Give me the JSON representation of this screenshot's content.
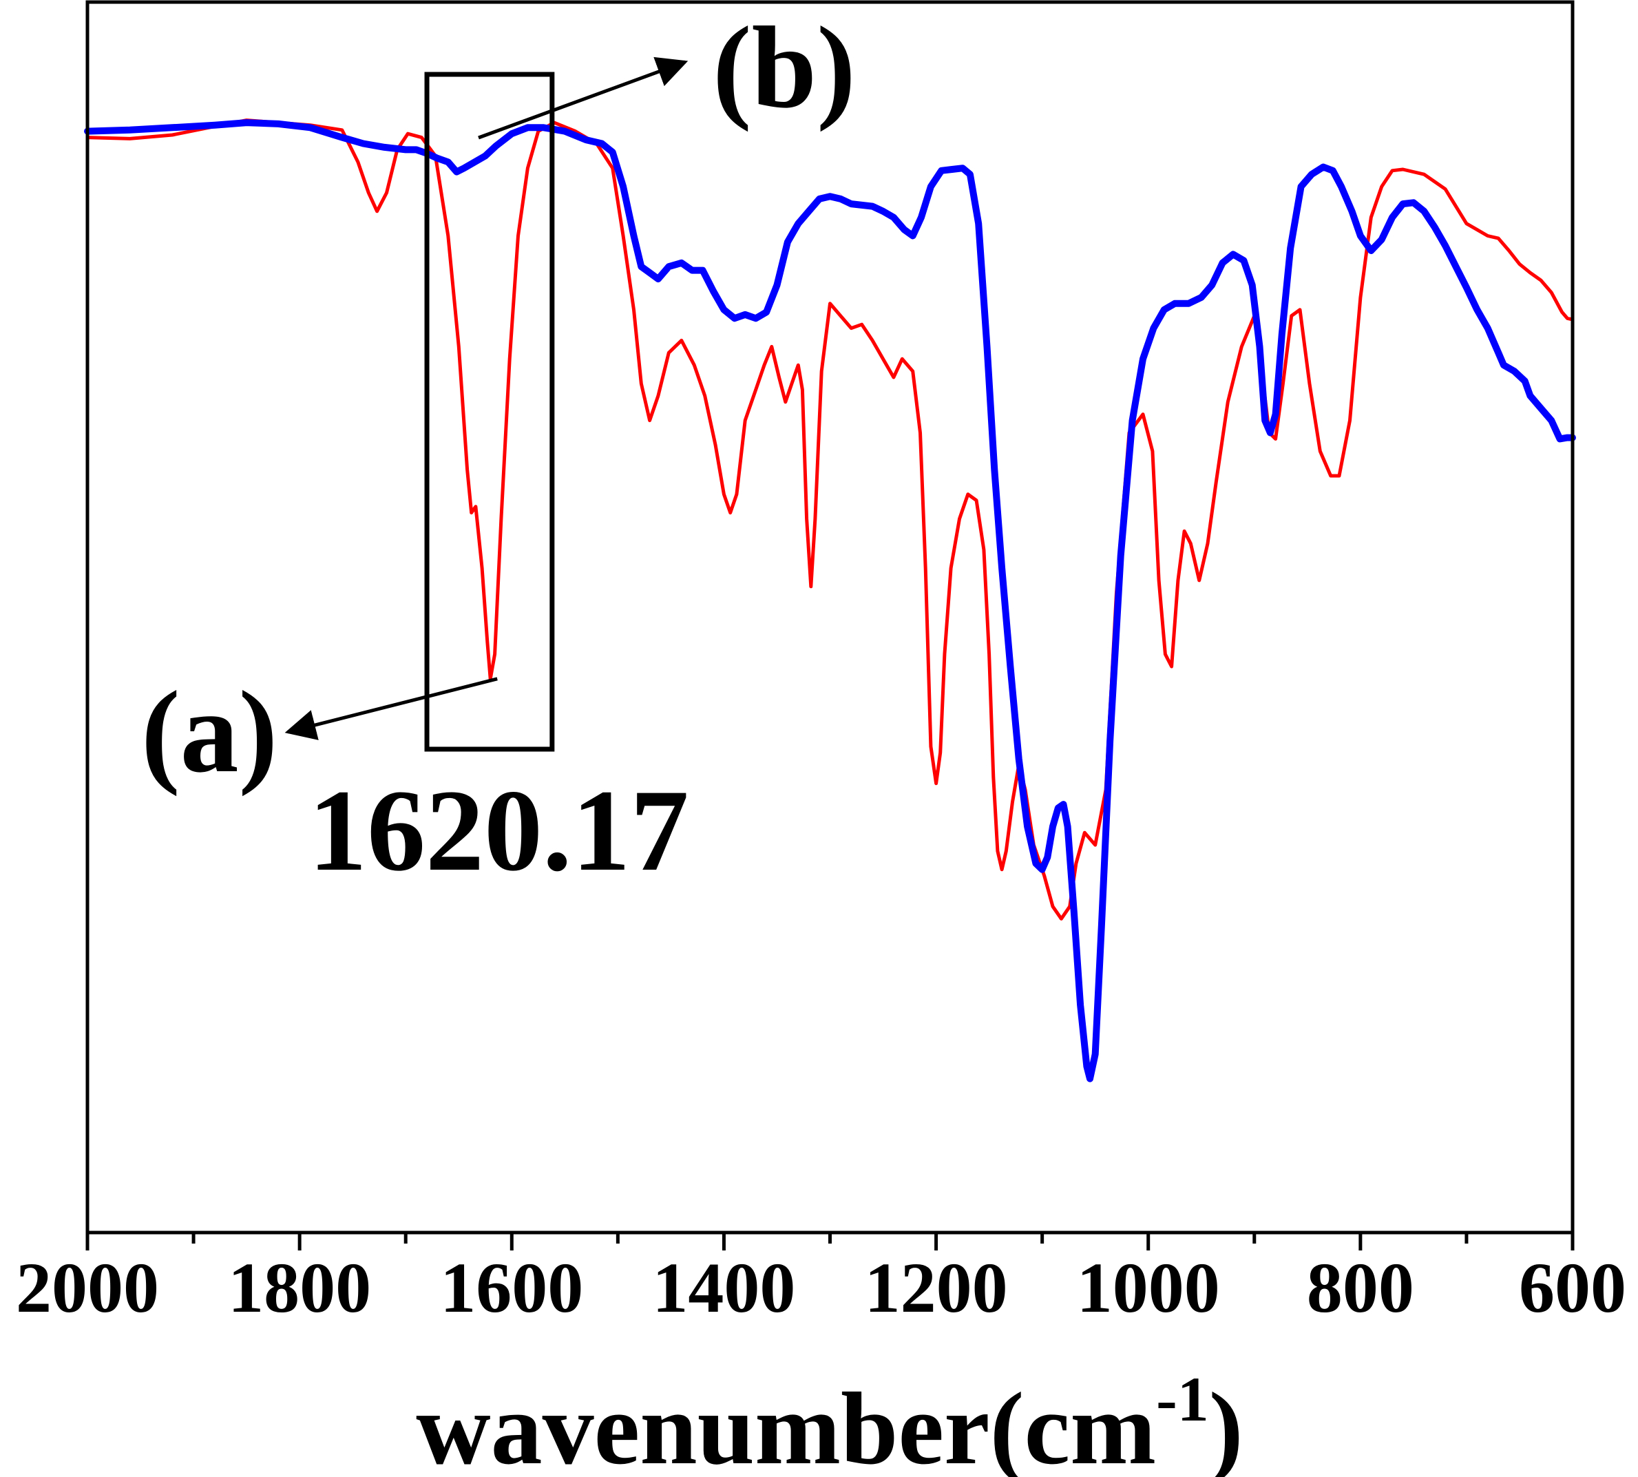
{
  "chart_data": {
    "type": "line",
    "title": "",
    "xlabel": "wavenumber(cm",
    "xlabel_sup": "-1",
    "xlabel_close": ")",
    "ylabel": "",
    "xlim": [
      2000,
      600
    ],
    "x_reversed": true,
    "ylim": [
      0,
      100
    ],
    "y_ticks_labeled": false,
    "grid": false,
    "x_ticks": [
      2000,
      1800,
      1600,
      1400,
      1200,
      1000,
      800,
      600
    ],
    "x_tick_labels": [
      "2000",
      "1800",
      "1600",
      "1400",
      "1200",
      "1000",
      "800",
      "600"
    ],
    "series": [
      {
        "label": "(a)",
        "color": "#ff0000",
        "points": [
          [
            2000,
            89.0
          ],
          [
            1960,
            88.9
          ],
          [
            1920,
            89.2
          ],
          [
            1880,
            89.9
          ],
          [
            1850,
            90.4
          ],
          [
            1820,
            90.2
          ],
          [
            1790,
            90.0
          ],
          [
            1760,
            89.6
          ],
          [
            1745,
            87.0
          ],
          [
            1735,
            84.5
          ],
          [
            1727,
            83.0
          ],
          [
            1718,
            84.5
          ],
          [
            1708,
            88.0
          ],
          [
            1698,
            89.3
          ],
          [
            1685,
            89.0
          ],
          [
            1672,
            87.5
          ],
          [
            1660,
            81.0
          ],
          [
            1650,
            72.0
          ],
          [
            1642,
            62.0
          ],
          [
            1638,
            58.5
          ],
          [
            1634,
            59.0
          ],
          [
            1628,
            54.0
          ],
          [
            1623,
            48.0
          ],
          [
            1620.17,
            45.0
          ],
          [
            1616,
            47.0
          ],
          [
            1610,
            58.0
          ],
          [
            1602,
            71.0
          ],
          [
            1594,
            81.0
          ],
          [
            1585,
            86.5
          ],
          [
            1575,
            89.5
          ],
          [
            1560,
            90.2
          ],
          [
            1540,
            89.5
          ],
          [
            1520,
            88.5
          ],
          [
            1505,
            86.5
          ],
          [
            1495,
            81.0
          ],
          [
            1485,
            75.0
          ],
          [
            1478,
            69.0
          ],
          [
            1470,
            66.0
          ],
          [
            1462,
            68.0
          ],
          [
            1452,
            71.5
          ],
          [
            1440,
            72.5
          ],
          [
            1428,
            70.5
          ],
          [
            1418,
            68.0
          ],
          [
            1408,
            64.0
          ],
          [
            1400,
            60.0
          ],
          [
            1394,
            58.5
          ],
          [
            1388,
            60.0
          ],
          [
            1380,
            66.0
          ],
          [
            1370,
            68.5
          ],
          [
            1362,
            70.5
          ],
          [
            1355,
            72.0
          ],
          [
            1348,
            69.5
          ],
          [
            1342,
            67.5
          ],
          [
            1336,
            69.0
          ],
          [
            1330,
            70.5
          ],
          [
            1326,
            68.5
          ],
          [
            1322,
            58.0
          ],
          [
            1318,
            52.5
          ],
          [
            1314,
            58.0
          ],
          [
            1308,
            70.0
          ],
          [
            1300,
            75.5
          ],
          [
            1290,
            74.5
          ],
          [
            1280,
            73.5
          ],
          [
            1270,
            73.8
          ],
          [
            1260,
            72.5
          ],
          [
            1250,
            71.0
          ],
          [
            1240,
            69.5
          ],
          [
            1232,
            71.0
          ],
          [
            1222,
            70.0
          ],
          [
            1215,
            65.0
          ],
          [
            1210,
            54.0
          ],
          [
            1205,
            39.5
          ],
          [
            1200,
            36.5
          ],
          [
            1196,
            39.0
          ],
          [
            1192,
            47.0
          ],
          [
            1186,
            54.0
          ],
          [
            1178,
            58.0
          ],
          [
            1170,
            60.0
          ],
          [
            1162,
            59.5
          ],
          [
            1155,
            55.5
          ],
          [
            1150,
            47.0
          ],
          [
            1146,
            37.0
          ],
          [
            1142,
            31.0
          ],
          [
            1138,
            29.5
          ],
          [
            1134,
            31.0
          ],
          [
            1128,
            35.0
          ],
          [
            1122,
            38.0
          ],
          [
            1116,
            36.0
          ],
          [
            1108,
            31.5
          ],
          [
            1098,
            29.0
          ],
          [
            1090,
            26.5
          ],
          [
            1082,
            25.5
          ],
          [
            1074,
            26.5
          ],
          [
            1068,
            30.0
          ],
          [
            1060,
            32.5
          ],
          [
            1050,
            31.5
          ],
          [
            1040,
            36.0
          ],
          [
            1030,
            52.0
          ],
          [
            1018,
            65.0
          ],
          [
            1005,
            66.5
          ],
          [
            996,
            63.5
          ],
          [
            990,
            53.0
          ],
          [
            984,
            47.0
          ],
          [
            978,
            46.0
          ],
          [
            972,
            53.0
          ],
          [
            966,
            57.0
          ],
          [
            960,
            56.0
          ],
          [
            952,
            53.0
          ],
          [
            944,
            56.0
          ],
          [
            936,
            61.0
          ],
          [
            925,
            67.5
          ],
          [
            912,
            72.0
          ],
          [
            900,
            74.5
          ],
          [
            893,
            70.0
          ],
          [
            886,
            65.0
          ],
          [
            880,
            64.5
          ],
          [
            873,
            69.0
          ],
          [
            865,
            74.5
          ],
          [
            857,
            75.0
          ],
          [
            848,
            69.0
          ],
          [
            838,
            63.5
          ],
          [
            828,
            61.5
          ],
          [
            820,
            61.5
          ],
          [
            810,
            66.0
          ],
          [
            800,
            76.0
          ],
          [
            790,
            82.5
          ],
          [
            780,
            85.0
          ],
          [
            770,
            86.3
          ],
          [
            760,
            86.4
          ],
          [
            740,
            86.0
          ],
          [
            720,
            84.8
          ],
          [
            700,
            82.0
          ],
          [
            690,
            81.5
          ],
          [
            680,
            81.0
          ],
          [
            670,
            80.8
          ],
          [
            660,
            79.8
          ],
          [
            650,
            78.7
          ],
          [
            640,
            78.0
          ],
          [
            630,
            77.4
          ],
          [
            620,
            76.4
          ],
          [
            610,
            74.8
          ],
          [
            605,
            74.3
          ],
          [
            600,
            74.2
          ]
        ]
      },
      {
        "label": "(b)",
        "color": "#0000ff",
        "points": [
          [
            2000,
            89.5
          ],
          [
            1960,
            89.6
          ],
          [
            1920,
            89.8
          ],
          [
            1880,
            90.0
          ],
          [
            1850,
            90.2
          ],
          [
            1820,
            90.1
          ],
          [
            1790,
            89.8
          ],
          [
            1760,
            89.0
          ],
          [
            1740,
            88.5
          ],
          [
            1720,
            88.2
          ],
          [
            1700,
            88.0
          ],
          [
            1690,
            88.0
          ],
          [
            1680,
            87.7
          ],
          [
            1670,
            87.3
          ],
          [
            1660,
            87.0
          ],
          [
            1652,
            86.2
          ],
          [
            1645,
            86.5
          ],
          [
            1635,
            87.0
          ],
          [
            1625,
            87.5
          ],
          [
            1615,
            88.3
          ],
          [
            1600,
            89.3
          ],
          [
            1585,
            89.8
          ],
          [
            1570,
            89.8
          ],
          [
            1550,
            89.5
          ],
          [
            1530,
            88.8
          ],
          [
            1515,
            88.5
          ],
          [
            1505,
            87.8
          ],
          [
            1495,
            85.0
          ],
          [
            1485,
            81.0
          ],
          [
            1478,
            78.5
          ],
          [
            1470,
            78.0
          ],
          [
            1462,
            77.5
          ],
          [
            1452,
            78.5
          ],
          [
            1440,
            78.8
          ],
          [
            1430,
            78.2
          ],
          [
            1420,
            78.2
          ],
          [
            1410,
            76.5
          ],
          [
            1400,
            75.0
          ],
          [
            1390,
            74.3
          ],
          [
            1380,
            74.6
          ],
          [
            1370,
            74.3
          ],
          [
            1360,
            74.8
          ],
          [
            1350,
            77.0
          ],
          [
            1340,
            80.5
          ],
          [
            1330,
            82.0
          ],
          [
            1320,
            83.0
          ],
          [
            1310,
            84.0
          ],
          [
            1300,
            84.2
          ],
          [
            1290,
            84.0
          ],
          [
            1280,
            83.6
          ],
          [
            1270,
            83.5
          ],
          [
            1260,
            83.4
          ],
          [
            1250,
            83.0
          ],
          [
            1240,
            82.5
          ],
          [
            1230,
            81.5
          ],
          [
            1222,
            81.0
          ],
          [
            1214,
            82.5
          ],
          [
            1205,
            85.0
          ],
          [
            1195,
            86.3
          ],
          [
            1185,
            86.4
          ],
          [
            1175,
            86.5
          ],
          [
            1168,
            86.0
          ],
          [
            1160,
            82.0
          ],
          [
            1152,
            72.0
          ],
          [
            1145,
            62.0
          ],
          [
            1138,
            54.0
          ],
          [
            1130,
            46.0
          ],
          [
            1122,
            38.5
          ],
          [
            1114,
            33.0
          ],
          [
            1106,
            30.0
          ],
          [
            1100,
            29.5
          ],
          [
            1095,
            30.5
          ],
          [
            1090,
            33.0
          ],
          [
            1085,
            34.5
          ],
          [
            1080,
            34.8
          ],
          [
            1076,
            33.0
          ],
          [
            1070,
            26.0
          ],
          [
            1064,
            18.5
          ],
          [
            1058,
            13.5
          ],
          [
            1055,
            12.5
          ],
          [
            1050,
            14.5
          ],
          [
            1044,
            25.0
          ],
          [
            1036,
            40.0
          ],
          [
            1026,
            55.0
          ],
          [
            1015,
            66.0
          ],
          [
            1005,
            71.0
          ],
          [
            995,
            73.5
          ],
          [
            985,
            75.0
          ],
          [
            975,
            75.5
          ],
          [
            962,
            75.5
          ],
          [
            950,
            76.0
          ],
          [
            940,
            77.0
          ],
          [
            930,
            78.8
          ],
          [
            920,
            79.5
          ],
          [
            910,
            79.0
          ],
          [
            902,
            77.0
          ],
          [
            895,
            72.0
          ],
          [
            890,
            66.0
          ],
          [
            885,
            65.0
          ],
          [
            880,
            66.5
          ],
          [
            874,
            73.0
          ],
          [
            866,
            80.0
          ],
          [
            856,
            85.0
          ],
          [
            846,
            86.0
          ],
          [
            835,
            86.6
          ],
          [
            826,
            86.3
          ],
          [
            818,
            85.0
          ],
          [
            808,
            83.0
          ],
          [
            800,
            81.0
          ],
          [
            790,
            79.8
          ],
          [
            780,
            80.7
          ],
          [
            770,
            82.5
          ],
          [
            760,
            83.6
          ],
          [
            750,
            83.7
          ],
          [
            740,
            83.0
          ],
          [
            730,
            81.7
          ],
          [
            720,
            80.2
          ],
          [
            710,
            78.5
          ],
          [
            700,
            76.8
          ],
          [
            690,
            75.0
          ],
          [
            680,
            73.5
          ],
          [
            670,
            71.5
          ],
          [
            665,
            70.5
          ],
          [
            655,
            70.0
          ],
          [
            645,
            69.2
          ],
          [
            640,
            68.0
          ],
          [
            630,
            67.0
          ],
          [
            620,
            66.0
          ],
          [
            612,
            64.5
          ],
          [
            605,
            64.6
          ],
          [
            600,
            64.6
          ]
        ]
      }
    ],
    "annotations": {
      "peak_value": "1620.17",
      "label_a": "(a)",
      "label_b": "(b)",
      "highlight_box_x_range": [
        1680,
        1562
      ]
    }
  },
  "colors": {
    "series_a": "#ff0000",
    "series_b": "#0000ff",
    "axis": "#000000"
  }
}
